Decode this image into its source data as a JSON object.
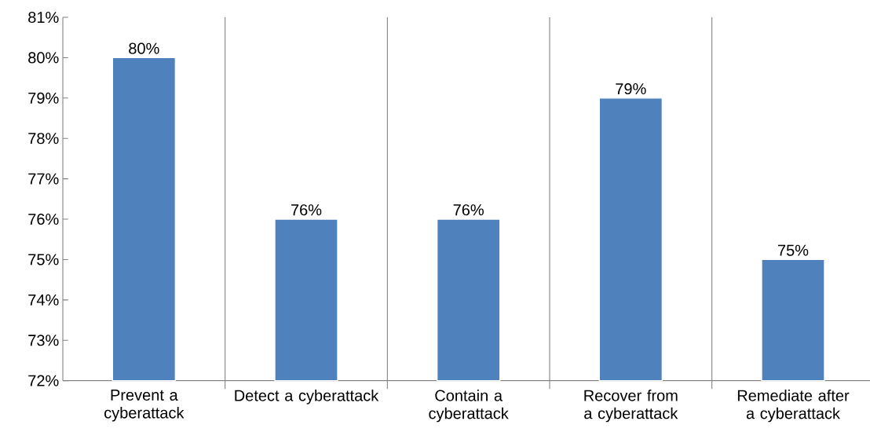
{
  "chart_data": {
    "type": "bar",
    "categories": [
      "Prevent a cyberattack",
      "Detect a cyberattack",
      "Contain a cyberattack",
      "Recover from a cyberattack",
      "Remediate after a cyberattack"
    ],
    "values": [
      80,
      76,
      76,
      79,
      75
    ],
    "value_labels": [
      "80%",
      "76%",
      "76%",
      "79%",
      "75%"
    ],
    "color": "#4f81bd",
    "ylim": [
      72,
      81
    ],
    "yticks": [
      {
        "value": 72,
        "label": "72%"
      },
      {
        "value": 73,
        "label": "73%"
      },
      {
        "value": 74,
        "label": "74%"
      },
      {
        "value": 75,
        "label": "75%"
      },
      {
        "value": 76,
        "label": "76%"
      },
      {
        "value": 77,
        "label": "77%"
      },
      {
        "value": 78,
        "label": "78%"
      },
      {
        "value": 79,
        "label": "79%"
      },
      {
        "value": 80,
        "label": "80%"
      },
      {
        "value": 81,
        "label": "81%"
      }
    ],
    "grid": "x"
  }
}
